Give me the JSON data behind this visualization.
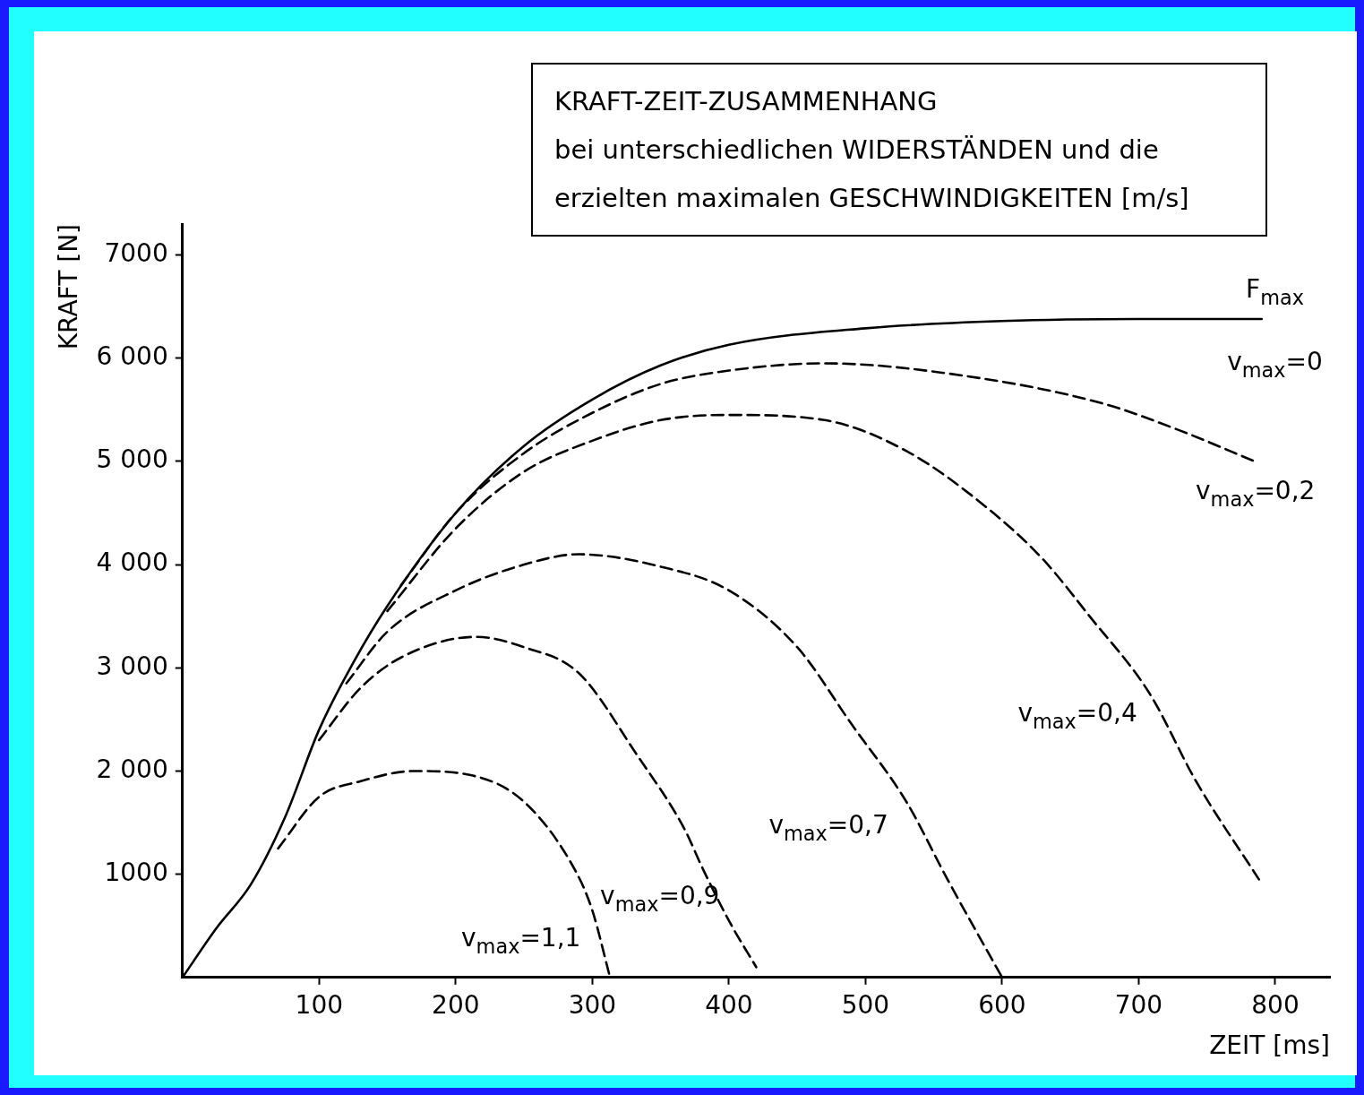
{
  "chart_data": {
    "type": "line",
    "title": "KRAFT-ZEIT-ZUSAMMENHANG",
    "subtitle": "bei unterschiedlichen WIDERSTÄNDEN und die erzielten maximalen GESCHWINDIGKEITEN [m/s]",
    "xlabel": "ZEIT [ms]",
    "ylabel": "KRAFT [N]",
    "xlim": [
      0,
      840
    ],
    "ylim": [
      0,
      7300
    ],
    "xticks": [
      100,
      200,
      300,
      400,
      500,
      600,
      700,
      800
    ],
    "yticks": [
      1000,
      {
        "value": 2000,
        "label": "2 000"
      },
      {
        "value": 3000,
        "label": "3 000"
      },
      {
        "value": 4000,
        "label": "4 000"
      },
      {
        "value": 5000,
        "label": "5 000"
      },
      {
        "value": 6000,
        "label": "6 000"
      },
      7000
    ],
    "grid": false,
    "legend": false,
    "marker": "none",
    "series": [
      {
        "color": "#000000",
        "line_style": "solid",
        "x": [
          0,
          25,
          50,
          75,
          100,
          125,
          150,
          200,
          250,
          300,
          350,
          400,
          500,
          600,
          700,
          790
        ],
        "values": [
          0,
          480,
          900,
          1550,
          2400,
          3050,
          3600,
          4500,
          5150,
          5600,
          5930,
          6130,
          6290,
          6360,
          6380,
          6380
        ]
      },
      {
        "color": "#000000",
        "line_style": "dashed",
        "x": [
          160,
          200,
          250,
          300,
          350,
          400,
          470,
          572,
          674,
          730,
          785
        ],
        "values": [
          3800,
          4500,
          5080,
          5470,
          5750,
          5880,
          5950,
          5830,
          5560,
          5300,
          5000
        ]
      },
      {
        "color": "#000000",
        "line_style": "dashed",
        "x": [
          150,
          200,
          250,
          300,
          350,
          400,
          470,
          530,
          589,
          630,
          664,
          708,
          742,
          788
        ],
        "values": [
          3550,
          4350,
          4900,
          5200,
          5400,
          5450,
          5400,
          5100,
          4550,
          4050,
          3500,
          2750,
          1900,
          950
        ]
      },
      {
        "color": "#000000",
        "line_style": "dashed",
        "x": [
          120,
          150,
          200,
          250,
          290,
          350,
          400,
          450,
          490,
          530,
          560,
          600
        ],
        "values": [
          2850,
          3350,
          3750,
          4000,
          4100,
          3980,
          3750,
          3200,
          2450,
          1700,
          950,
          0
        ]
      },
      {
        "color": "#000000",
        "line_style": "dashed",
        "x": [
          100,
          130,
          160,
          215,
          250,
          290,
          333,
          367,
          381,
          400,
          420
        ],
        "values": [
          2300,
          2800,
          3100,
          3300,
          3200,
          2950,
          2150,
          1450,
          1050,
          550,
          100
        ]
      },
      {
        "color": "#000000",
        "line_style": "dashed",
        "x": [
          70,
          100,
          130,
          170,
          211,
          251,
          289,
          300,
          313
        ],
        "values": [
          1250,
          1750,
          1900,
          2000,
          1960,
          1690,
          1000,
          650,
          0
        ]
      }
    ],
    "annotations": [
      "F$_{max}$",
      "v$_{max}$=0",
      "v$_{max}$=0,2",
      "v$_{max}$=0,4",
      "v$_{max}$=0,7",
      "v$_{max}$=0,9",
      "v$_{max}$=1,1"
    ]
  }
}
